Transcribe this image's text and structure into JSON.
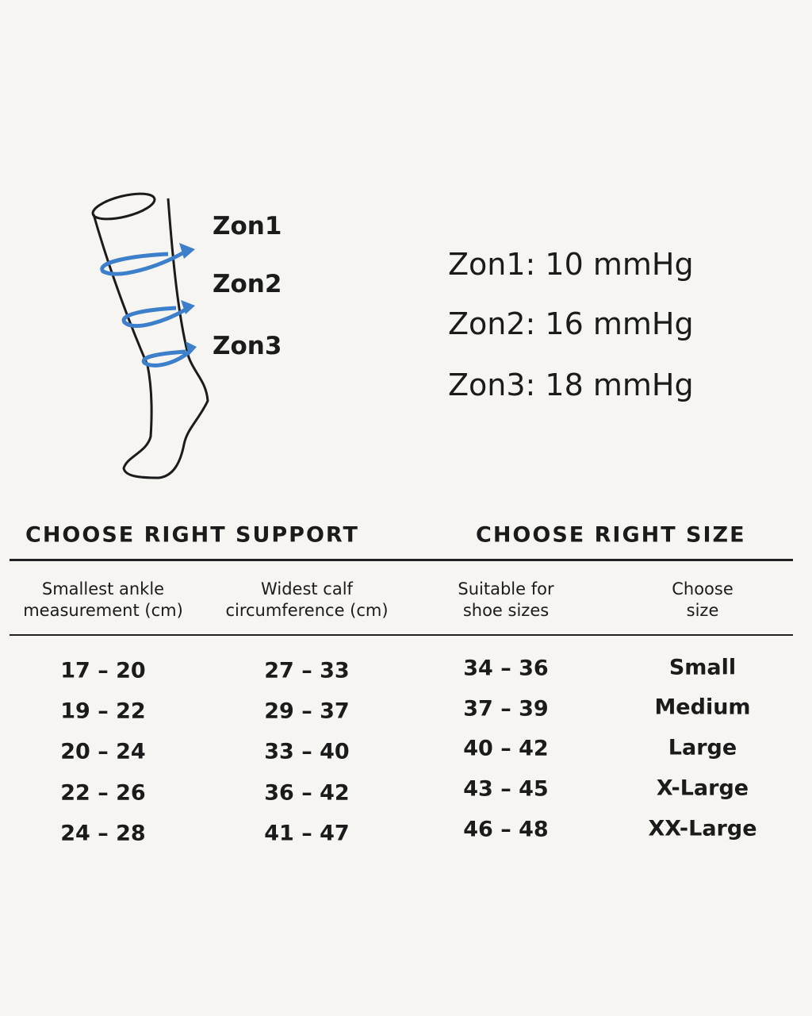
{
  "diagram": {
    "zones": [
      "Zon1",
      "Zon2",
      "Zon3"
    ]
  },
  "pressures": [
    "Zon1: 10 mmHg",
    "Zon2: 16 mmHg",
    "Zon3: 18 mmHg"
  ],
  "headings": {
    "support": "CHOOSE RIGHT SUPPORT",
    "size": "CHOOSE RIGHT SIZE"
  },
  "table": {
    "header": [
      [
        "Smallest ankle",
        "measurement (cm)"
      ],
      [
        "Widest calf",
        "circumference (cm)"
      ],
      [
        "Suitable for",
        "shoe sizes"
      ],
      [
        "Choose",
        "size"
      ]
    ],
    "rows": [
      [
        "17 – 20",
        "27 – 33",
        "34 – 36",
        "Small"
      ],
      [
        "19 – 22",
        "29 – 37",
        "37 – 39",
        "Medium"
      ],
      [
        "20 – 24",
        "33 – 40",
        "40 – 42",
        "Large"
      ],
      [
        "22 – 26",
        "36 – 42",
        "43 – 45",
        "X-Large"
      ],
      [
        "24 – 28",
        "41 – 47",
        "46 – 48",
        "XX-Large"
      ]
    ]
  }
}
